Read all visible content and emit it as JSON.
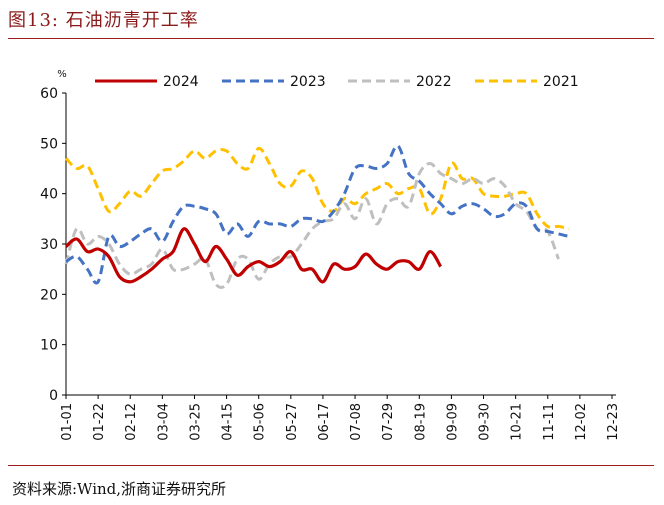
{
  "figure": {
    "title": "图13:    石油沥青开工率",
    "source": "资料来源:Wind,浙商证券研究所"
  },
  "chart_data": {
    "type": "line",
    "title": "石油沥青开工率",
    "unit": "%",
    "ylim": [
      0,
      60
    ],
    "yticks": [
      0,
      10,
      20,
      30,
      40,
      50,
      60
    ],
    "x_range": [
      0,
      51
    ],
    "x_ticks": [
      {
        "label": "01-01",
        "x": 0
      },
      {
        "label": "01-22",
        "x": 3
      },
      {
        "label": "02-12",
        "x": 6
      },
      {
        "label": "03-04",
        "x": 9
      },
      {
        "label": "03-25",
        "x": 12
      },
      {
        "label": "04-15",
        "x": 15
      },
      {
        "label": "05-06",
        "x": 18
      },
      {
        "label": "05-27",
        "x": 21
      },
      {
        "label": "06-17",
        "x": 24
      },
      {
        "label": "07-08",
        "x": 27
      },
      {
        "label": "07-29",
        "x": 30
      },
      {
        "label": "08-19",
        "x": 33
      },
      {
        "label": "09-09",
        "x": 36
      },
      {
        "label": "09-30",
        "x": 39
      },
      {
        "label": "10-21",
        "x": 42
      },
      {
        "label": "11-11",
        "x": 45
      },
      {
        "label": "12-02",
        "x": 48
      },
      {
        "label": "12-23",
        "x": 51
      }
    ],
    "legend_position": "top",
    "series": [
      {
        "name": "2024",
        "color": "#c00000",
        "dash": "solid",
        "values": [
          29.5,
          31,
          28.5,
          29,
          27.5,
          23.5,
          22.5,
          23.5,
          25,
          27,
          28.5,
          33,
          30,
          26.5,
          29.5,
          27,
          23.8,
          25.5,
          26.5,
          25.5,
          26.5,
          28.5,
          25,
          25,
          22.5,
          26,
          25,
          25.5,
          28,
          26,
          25,
          26.5,
          26.5,
          25,
          28.5,
          25.5
        ]
      },
      {
        "name": "2023",
        "color": "#4472c4",
        "dash": "dash",
        "values": [
          26.5,
          27.5,
          25,
          22.5,
          31.5,
          29.5,
          30.5,
          32,
          33,
          30.5,
          34.5,
          37.5,
          37.5,
          37,
          36,
          32,
          34,
          31.5,
          34.5,
          34,
          34,
          33.5,
          35,
          35,
          34.5,
          36.5,
          40,
          45,
          45.5,
          45,
          46,
          49.5,
          44,
          42.5,
          40,
          38,
          36,
          37.5,
          38,
          37,
          35.5,
          36,
          38,
          37.5,
          33,
          32.5,
          32,
          31.5
        ]
      },
      {
        "name": "2022",
        "color": "#bfbfbf",
        "dash": "dash",
        "values": [
          26,
          33,
          30,
          31.5,
          30,
          26,
          24,
          25,
          26,
          29,
          25,
          25,
          26,
          27,
          22,
          22,
          27,
          27,
          23,
          26,
          27.5,
          27.5,
          30,
          33,
          34.5,
          35,
          38,
          35,
          39,
          34,
          38,
          39,
          37.5,
          44,
          46,
          44,
          43,
          42,
          43,
          42,
          43,
          41.5,
          38,
          36.5,
          33,
          32.5,
          27
        ]
      },
      {
        "name": "2021",
        "color": "#ffc000",
        "dash": "dash",
        "values": [
          47,
          45,
          45.5,
          41,
          36.5,
          38,
          40.5,
          39.5,
          42,
          44.5,
          45,
          46.5,
          48.5,
          47,
          48.5,
          48.5,
          46,
          45,
          49,
          46,
          42,
          41.5,
          44.5,
          43,
          38,
          36.5,
          39,
          38,
          40,
          41,
          42,
          40,
          41,
          41,
          36,
          39,
          46,
          43,
          43,
          40,
          39.5,
          39.5,
          40,
          40,
          36,
          33.5,
          33.5,
          33
        ]
      }
    ]
  }
}
